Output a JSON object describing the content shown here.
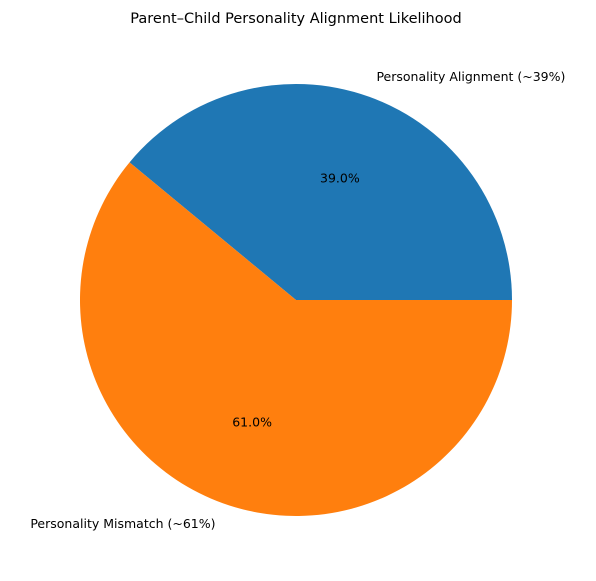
{
  "chart_data": {
    "type": "pie",
    "title": "Parent–Child Personality Alignment Likelihood",
    "slices": [
      {
        "label": "Personality Alignment (~39%)",
        "value": 39.0,
        "pct_label": "39.0%",
        "color": "#1f77b4"
      },
      {
        "label": "Personality Mismatch (~61%)",
        "value": 61.0,
        "pct_label": "61.0%",
        "color": "#ff7f0e"
      }
    ],
    "start_angle_deg": 0,
    "direction": "counterclockwise",
    "legend": "none"
  }
}
